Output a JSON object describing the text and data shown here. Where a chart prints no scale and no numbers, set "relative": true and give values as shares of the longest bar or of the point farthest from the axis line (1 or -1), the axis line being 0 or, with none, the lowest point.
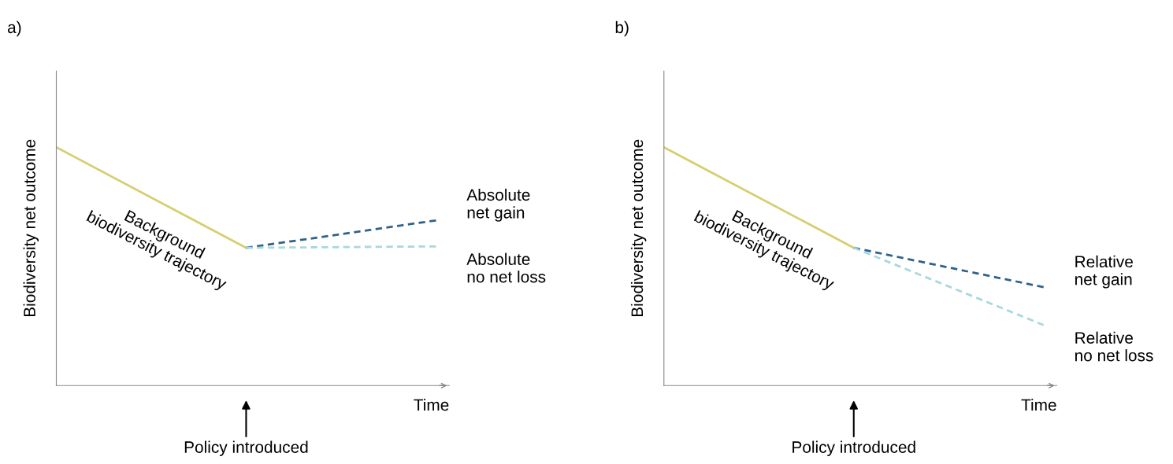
{
  "chart_data": [
    {
      "type": "line",
      "title": "a)",
      "xlabel": "Time",
      "ylabel": "Biodiversity net outcome",
      "relative": true,
      "legend": false,
      "marker": "none",
      "categories": [
        null,
        null,
        null
      ],
      "annotations": [
        "Policy introduced"
      ],
      "series": [
        {
          "name": "Background\nbiodiversity trajectory",
          "color": "#d6cf72",
          "line_style": "solid",
          "values": [
            1,
            0.578,
            null
          ]
        },
        {
          "name": "Absolute\nnet gain",
          "color": "#2f6189",
          "line_style": "dashed",
          "values": [
            null,
            0.578,
            0.693
          ]
        },
        {
          "name": "Absolute\nno net loss",
          "color": "#a8d8dc",
          "line_style": "dashed",
          "values": [
            null,
            0.578,
            0.584
          ]
        }
      ]
    },
    {
      "type": "line",
      "title": "b)",
      "xlabel": "Time",
      "ylabel": "Biodiversity net outcome",
      "relative": true,
      "legend": false,
      "marker": "none",
      "categories": [
        null,
        null,
        null
      ],
      "annotations": [
        "Policy introduced"
      ],
      "series": [
        {
          "name": "Background\nbiodiversity trajectory",
          "color": "#d6cf72",
          "line_style": "solid",
          "values": [
            1,
            0.578,
            null
          ]
        },
        {
          "name": "Relative\nnet gain",
          "color": "#2f6189",
          "line_style": "dashed",
          "values": [
            null,
            0.578,
            0.413
          ]
        },
        {
          "name": "Relative\nno net loss",
          "color": "#a8d8dc",
          "line_style": "dashed",
          "values": [
            null,
            0.578,
            0.254
          ]
        }
      ]
    }
  ]
}
